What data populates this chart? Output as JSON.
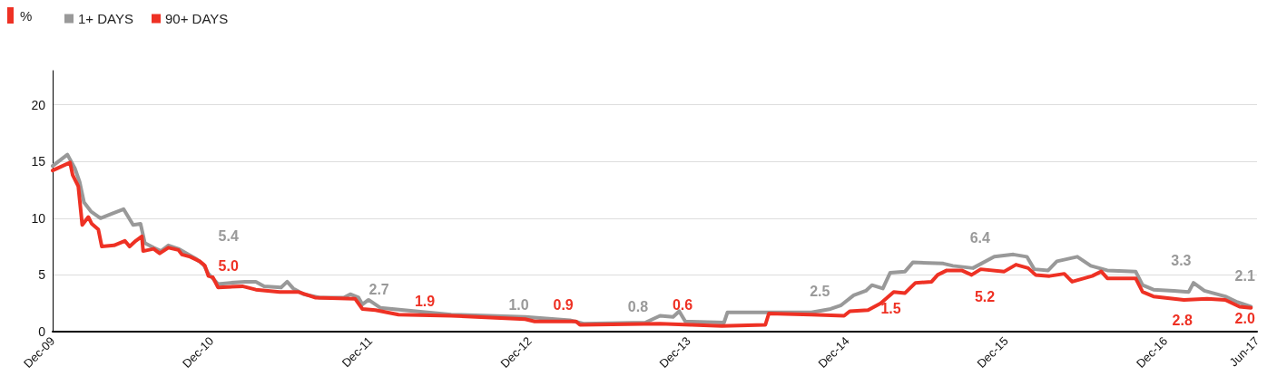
{
  "chart_data": {
    "type": "line",
    "ylabel": "%",
    "legend": "top left",
    "grid": "y",
    "marker": "none",
    "line_style": "solid",
    "xlim": [
      "2009-12-01",
      "2017-06-30"
    ],
    "xticks": [
      {
        "value": "2009-12-01",
        "label": "Dec-09"
      },
      {
        "value": "2010-12-01",
        "label": "Dec-10"
      },
      {
        "value": "2011-12-01",
        "label": "Dec-11"
      },
      {
        "value": "2012-12-01",
        "label": "Dec-12"
      },
      {
        "value": "2013-12-01",
        "label": "Dec-13"
      },
      {
        "value": "2014-12-01",
        "label": "Dec-14"
      },
      {
        "value": "2015-12-01",
        "label": "Dec-15"
      },
      {
        "value": "2016-12-01",
        "label": "Dec-16"
      },
      {
        "value": "2017-06-30",
        "label": "Jun-17"
      }
    ],
    "ylim": [
      0,
      23
    ],
    "yticks": [
      0,
      5,
      10,
      15,
      20
    ],
    "series": [
      {
        "name": "1+ DAYS",
        "color": "#999999",
        "x": [
          "2009-12-01",
          "2010-01-04",
          "2010-01-21",
          "2010-02-01",
          "2010-02-11",
          "2010-02-27",
          "2010-03-21",
          "2010-04-16",
          "2010-05-13",
          "2010-06-04",
          "2010-06-21",
          "2010-07-01",
          "2010-07-21",
          "2010-08-07",
          "2010-08-24",
          "2010-09-16",
          "2010-10-04",
          "2010-10-27",
          "2010-11-13",
          "2010-11-24",
          "2010-12-16",
          "2011-01-13",
          "2011-02-16",
          "2011-03-13",
          "2011-04-01",
          "2011-05-10",
          "2011-05-24",
          "2011-06-07",
          "2011-07-01",
          "2011-08-07",
          "2011-10-01",
          "2011-10-16",
          "2011-11-04",
          "2011-11-13",
          "2011-11-27",
          "2011-12-24",
          "2012-06-04",
          "2012-11-21",
          "2013-03-04",
          "2013-04-04",
          "2013-08-24",
          "2013-09-27",
          "2013-10-27",
          "2013-11-10",
          "2013-11-24",
          "2014-02-21",
          "2014-03-01",
          "2014-09-10",
          "2014-10-24",
          "2014-11-16",
          "2014-12-16",
          "2015-01-13",
          "2015-01-27",
          "2015-02-21",
          "2015-03-10",
          "2015-04-13",
          "2015-05-01",
          "2015-07-10",
          "2015-08-01",
          "2015-09-16",
          "2015-11-04",
          "2015-12-18",
          "2016-01-18",
          "2016-02-04",
          "2016-03-07",
          "2016-03-27",
          "2016-05-13",
          "2016-06-13",
          "2016-07-21",
          "2016-09-24",
          "2016-10-10",
          "2016-11-04",
          "2016-12-21",
          "2017-01-24",
          "2017-02-04",
          "2017-03-01",
          "2017-04-18",
          "2017-05-16",
          "2017-06-16"
        ],
        "values": [
          14.6,
          15.6,
          14.4,
          13.2,
          11.4,
          10.6,
          10.0,
          10.4,
          10.8,
          9.4,
          9.5,
          7.8,
          7.4,
          7.1,
          7.6,
          7.3,
          6.9,
          6.4,
          5.9,
          5.1,
          4.2,
          4.3,
          4.4,
          4.4,
          4.0,
          3.9,
          4.4,
          3.8,
          3.3,
          3.0,
          3.0,
          3.3,
          3.0,
          2.4,
          2.8,
          2.1,
          1.5,
          1.3,
          1.0,
          0.7,
          0.8,
          1.4,
          1.3,
          1.8,
          0.9,
          0.8,
          1.7,
          1.7,
          2.0,
          2.3,
          3.2,
          3.6,
          4.1,
          3.8,
          5.2,
          5.3,
          6.1,
          6.0,
          5.8,
          5.6,
          6.6,
          6.8,
          6.6,
          5.5,
          5.4,
          6.2,
          6.6,
          5.8,
          5.4,
          5.3,
          4.1,
          3.7,
          3.6,
          3.5,
          4.3,
          3.6,
          3.1,
          2.6,
          2.2
        ]
      },
      {
        "name": "90+ DAYS",
        "color": "#ee3124",
        "x": [
          "2009-12-01",
          "2010-01-10",
          "2010-01-16",
          "2010-01-29",
          "2010-02-07",
          "2010-02-21",
          "2010-03-01",
          "2010-03-16",
          "2010-03-24",
          "2010-04-21",
          "2010-05-16",
          "2010-05-27",
          "2010-06-10",
          "2010-06-24",
          "2010-06-27",
          "2010-07-21",
          "2010-08-04",
          "2010-08-24",
          "2010-09-16",
          "2010-09-24",
          "2010-10-13",
          "2010-11-04",
          "2010-11-16",
          "2010-11-24",
          "2010-12-04",
          "2010-12-16",
          "2011-02-10",
          "2011-03-13",
          "2011-05-07",
          "2011-06-18",
          "2011-07-27",
          "2011-10-27",
          "2011-11-13",
          "2011-12-13",
          "2012-02-04",
          "2012-06-04",
          "2012-11-21",
          "2012-12-13",
          "2013-03-18",
          "2013-03-27",
          "2013-09-27",
          "2013-12-07",
          "2014-02-16",
          "2014-05-27",
          "2014-06-04",
          "2014-09-10",
          "2014-11-24",
          "2014-12-07",
          "2015-01-18",
          "2015-02-16",
          "2015-03-18",
          "2015-04-13",
          "2015-05-07",
          "2015-06-13",
          "2015-06-27",
          "2015-07-18",
          "2015-08-21",
          "2015-09-13",
          "2015-10-04",
          "2015-11-27",
          "2015-12-24",
          "2016-01-21",
          "2016-02-07",
          "2016-03-10",
          "2016-04-13",
          "2016-05-01",
          "2016-06-16",
          "2016-07-07",
          "2016-07-21",
          "2016-09-24",
          "2016-10-10",
          "2016-11-04",
          "2017-01-13",
          "2017-03-07",
          "2017-04-18",
          "2017-05-21",
          "2017-06-16"
        ],
        "values": [
          14.2,
          14.9,
          13.8,
          12.8,
          9.4,
          10.1,
          9.5,
          9.0,
          7.5,
          7.6,
          8.0,
          7.5,
          8.0,
          8.4,
          7.1,
          7.3,
          6.9,
          7.4,
          7.2,
          6.8,
          6.6,
          6.2,
          5.8,
          4.9,
          4.8,
          3.9,
          4.0,
          3.7,
          3.5,
          3.5,
          3.0,
          2.9,
          2.0,
          1.9,
          1.5,
          1.4,
          1.1,
          0.9,
          0.9,
          0.6,
          0.7,
          0.6,
          0.5,
          0.6,
          1.6,
          1.5,
          1.4,
          1.8,
          1.9,
          2.5,
          3.5,
          3.4,
          4.3,
          4.4,
          5.0,
          5.4,
          5.4,
          5.0,
          5.5,
          5.3,
          5.9,
          5.6,
          5.0,
          4.9,
          5.1,
          4.4,
          4.9,
          5.3,
          4.7,
          4.7,
          3.5,
          3.1,
          2.8,
          2.9,
          2.8,
          2.2,
          2.1
        ]
      }
    ],
    "annotations": [
      "5.4",
      "2.7",
      "1.0",
      "0.8",
      "2.5",
      "6.4",
      "3.3",
      "2.1",
      "5.0",
      "1.9",
      "0.9",
      "0.6",
      "1.5",
      "5.2",
      "2.8",
      "2.0"
    ]
  }
}
